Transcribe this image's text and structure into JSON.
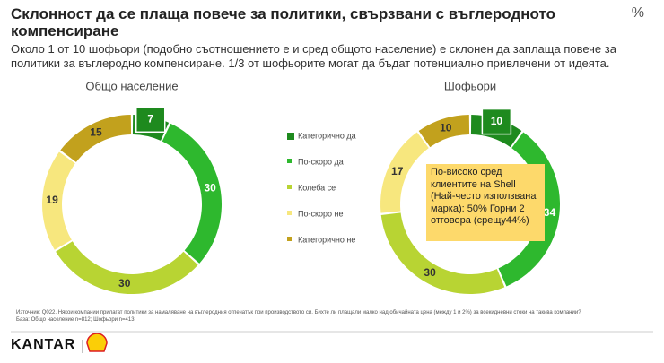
{
  "title": "Склонност да се плаща повече за политики, свързвани с въглеродното компенсиране",
  "percent_sign": "%",
  "subtitle": "Около 1 от 10 шофьори (подобно съотношението е и сред общото население) е склонен да заплаща повече за политики за въглеродно компенсиране. 1/3 от шофьорите могат да бъдат потенциално привлечени от идеята.",
  "chart_data": [
    {
      "type": "donut",
      "title": "Общо население",
      "categories": [
        "Категорично да",
        "По-скоро да",
        "Колеба се",
        "По-скоро не",
        "Категорично не"
      ],
      "values": [
        7,
        30,
        30,
        19,
        15
      ],
      "colors": [
        "#1e8a1e",
        "#2eb82e",
        "#b8d433",
        "#f7e77e",
        "#c2a11d"
      ]
    },
    {
      "type": "donut",
      "title": "Шофьори",
      "categories": [
        "Категорично да",
        "По-скоро да",
        "Колеба се",
        "По-скоро не",
        "Категорично не"
      ],
      "values": [
        10,
        34,
        30,
        17,
        10
      ],
      "colors": [
        "#1e8a1e",
        "#2eb82e",
        "#b8d433",
        "#f7e77e",
        "#c2a11d"
      ]
    }
  ],
  "callout": "По-високо сред клиентите на Shell (Най-често използвана марка): 50% Горни 2 отговора (срещу44%)",
  "source": [
    "Източник: Q022. Някои компании прилагат политики за намаляване на въглеродния отпечатък при производството си. Бихте ли плащали малко над обичайната цена (между 1 и 2%) за всекидневни стоки на такива компании?",
    "База: Общо население n=812; Шофьори n=413"
  ],
  "brand": "KANTAR"
}
